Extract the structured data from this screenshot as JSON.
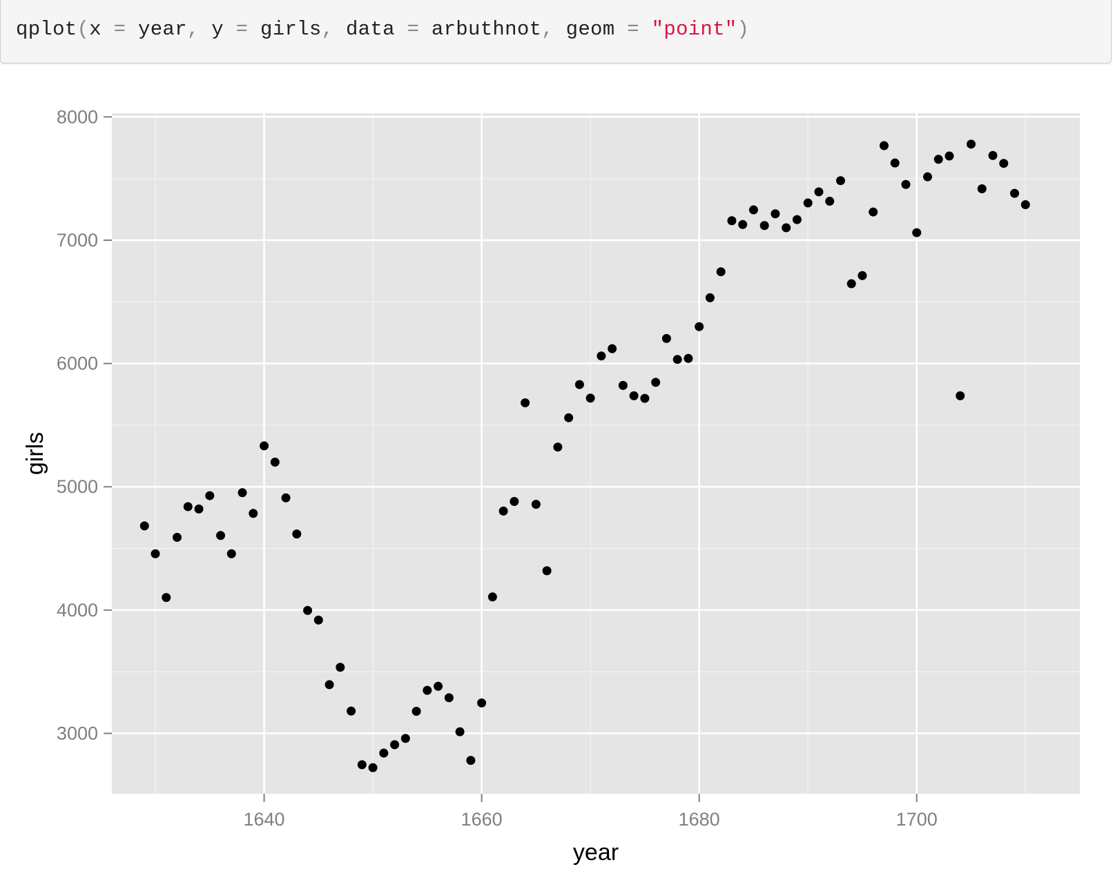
{
  "code": {
    "tokens": [
      {
        "text": "qplot",
        "kind": "plain"
      },
      {
        "text": "(",
        "kind": "punc"
      },
      {
        "text": "x ",
        "kind": "plain"
      },
      {
        "text": "=",
        "kind": "punc"
      },
      {
        "text": " year",
        "kind": "plain"
      },
      {
        "text": ",",
        "kind": "punc"
      },
      {
        "text": " y ",
        "kind": "plain"
      },
      {
        "text": "=",
        "kind": "punc"
      },
      {
        "text": " girls",
        "kind": "plain"
      },
      {
        "text": ",",
        "kind": "punc"
      },
      {
        "text": " data ",
        "kind": "plain"
      },
      {
        "text": "=",
        "kind": "punc"
      },
      {
        "text": " arbuthnot",
        "kind": "plain"
      },
      {
        "text": ",",
        "kind": "punc"
      },
      {
        "text": " geom ",
        "kind": "plain"
      },
      {
        "text": "=",
        "kind": "punc"
      },
      {
        "text": " ",
        "kind": "plain"
      },
      {
        "text": "\"point\"",
        "kind": "str"
      },
      {
        "text": ")",
        "kind": "punc"
      }
    ]
  },
  "colors": {
    "panel": "#e5e5e5",
    "grid_major": "#ffffff",
    "grid_minor": "#f2f2f2",
    "point": "#000000",
    "tick_text": "#7f7f7f"
  },
  "chart_data": {
    "type": "scatter",
    "xlabel": "year",
    "ylabel": "girls",
    "xlim": [
      1626,
      1715
    ],
    "ylim": [
      2510,
      8030
    ],
    "x_ticks": [
      1640,
      1660,
      1680,
      1700
    ],
    "x_tick_labels": [
      "1640",
      "1660",
      "1680",
      "1700"
    ],
    "x_minor_ticks": [
      1630,
      1650,
      1670,
      1690,
      1710
    ],
    "y_ticks": [
      3000,
      4000,
      5000,
      6000,
      7000,
      8000
    ],
    "y_tick_labels": [
      "3000",
      "4000",
      "5000",
      "6000",
      "7000",
      "8000"
    ],
    "y_minor_ticks": [
      3500,
      4500,
      5500,
      6500,
      7500
    ],
    "grid": true,
    "legend": "none",
    "points": [
      {
        "x": 1629,
        "y": 4683
      },
      {
        "x": 1630,
        "y": 4457
      },
      {
        "x": 1631,
        "y": 4102
      },
      {
        "x": 1632,
        "y": 4590
      },
      {
        "x": 1633,
        "y": 4839
      },
      {
        "x": 1634,
        "y": 4820
      },
      {
        "x": 1635,
        "y": 4928
      },
      {
        "x": 1636,
        "y": 4605
      },
      {
        "x": 1637,
        "y": 4457
      },
      {
        "x": 1638,
        "y": 4952
      },
      {
        "x": 1639,
        "y": 4784
      },
      {
        "x": 1640,
        "y": 5332
      },
      {
        "x": 1641,
        "y": 5200
      },
      {
        "x": 1642,
        "y": 4910
      },
      {
        "x": 1643,
        "y": 4617
      },
      {
        "x": 1644,
        "y": 3997
      },
      {
        "x": 1645,
        "y": 3919
      },
      {
        "x": 1646,
        "y": 3395
      },
      {
        "x": 1647,
        "y": 3536
      },
      {
        "x": 1648,
        "y": 3181
      },
      {
        "x": 1649,
        "y": 2746
      },
      {
        "x": 1650,
        "y": 2722
      },
      {
        "x": 1651,
        "y": 2840
      },
      {
        "x": 1652,
        "y": 2908
      },
      {
        "x": 1653,
        "y": 2959
      },
      {
        "x": 1654,
        "y": 3179
      },
      {
        "x": 1655,
        "y": 3349
      },
      {
        "x": 1656,
        "y": 3382
      },
      {
        "x": 1657,
        "y": 3289
      },
      {
        "x": 1658,
        "y": 3013
      },
      {
        "x": 1659,
        "y": 2781
      },
      {
        "x": 1660,
        "y": 3247
      },
      {
        "x": 1661,
        "y": 4107
      },
      {
        "x": 1662,
        "y": 4803
      },
      {
        "x": 1663,
        "y": 4881
      },
      {
        "x": 1664,
        "y": 5681
      },
      {
        "x": 1665,
        "y": 4858
      },
      {
        "x": 1666,
        "y": 4319
      },
      {
        "x": 1667,
        "y": 5322
      },
      {
        "x": 1668,
        "y": 5560
      },
      {
        "x": 1669,
        "y": 5829
      },
      {
        "x": 1670,
        "y": 5719
      },
      {
        "x": 1671,
        "y": 6061
      },
      {
        "x": 1672,
        "y": 6120
      },
      {
        "x": 1673,
        "y": 5822
      },
      {
        "x": 1674,
        "y": 5738
      },
      {
        "x": 1675,
        "y": 5717
      },
      {
        "x": 1676,
        "y": 5847
      },
      {
        "x": 1677,
        "y": 6203
      },
      {
        "x": 1678,
        "y": 6033
      },
      {
        "x": 1679,
        "y": 6041
      },
      {
        "x": 1680,
        "y": 6299
      },
      {
        "x": 1681,
        "y": 6533
      },
      {
        "x": 1682,
        "y": 6744
      },
      {
        "x": 1683,
        "y": 7158
      },
      {
        "x": 1684,
        "y": 7127
      },
      {
        "x": 1685,
        "y": 7246
      },
      {
        "x": 1686,
        "y": 7119
      },
      {
        "x": 1687,
        "y": 7214
      },
      {
        "x": 1688,
        "y": 7101
      },
      {
        "x": 1689,
        "y": 7167
      },
      {
        "x": 1690,
        "y": 7302
      },
      {
        "x": 1691,
        "y": 7392
      },
      {
        "x": 1692,
        "y": 7316
      },
      {
        "x": 1693,
        "y": 7483
      },
      {
        "x": 1694,
        "y": 6647
      },
      {
        "x": 1695,
        "y": 6713
      },
      {
        "x": 1696,
        "y": 7229
      },
      {
        "x": 1697,
        "y": 7767
      },
      {
        "x": 1698,
        "y": 7626
      },
      {
        "x": 1699,
        "y": 7452
      },
      {
        "x": 1700,
        "y": 7061
      },
      {
        "x": 1701,
        "y": 7514
      },
      {
        "x": 1702,
        "y": 7656
      },
      {
        "x": 1703,
        "y": 7683
      },
      {
        "x": 1704,
        "y": 5738
      },
      {
        "x": 1705,
        "y": 7779
      },
      {
        "x": 1706,
        "y": 7417
      },
      {
        "x": 1707,
        "y": 7687
      },
      {
        "x": 1708,
        "y": 7623
      },
      {
        "x": 1709,
        "y": 7380
      },
      {
        "x": 1710,
        "y": 7288
      }
    ]
  }
}
